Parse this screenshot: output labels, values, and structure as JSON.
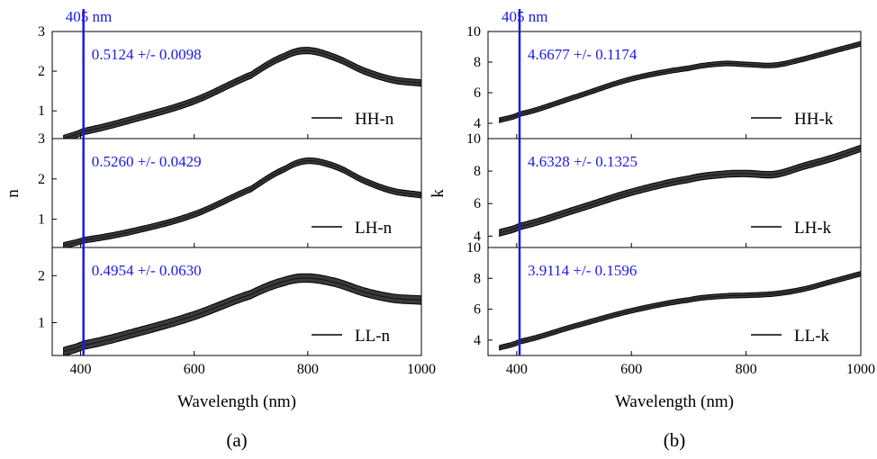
{
  "figure": {
    "panels": [
      {
        "id": "a",
        "caption": "(a)",
        "xlabel": "Wavelength (nm)",
        "ylabel": "n",
        "marker_label": "405 nm",
        "x_ticks": [
          "400",
          "600",
          "800",
          "1000"
        ]
      },
      {
        "id": "b",
        "caption": "(b)",
        "xlabel": "Wavelength (nm)",
        "ylabel": "k",
        "marker_label": "405 nm",
        "x_ticks": [
          "400",
          "600",
          "800",
          "1000"
        ]
      }
    ]
  },
  "chart_data": [
    {
      "type": "line",
      "panel": "a",
      "subplot": 1,
      "series": [
        {
          "name": "HH-n",
          "x": [
            370,
            405,
            500,
            600,
            700,
            760,
            800,
            850,
            900,
            950,
            1000
          ],
          "y": [
            0.3,
            0.48,
            0.82,
            1.25,
            1.9,
            2.38,
            2.52,
            2.33,
            2.0,
            1.78,
            1.7
          ]
        }
      ],
      "band_halfwidth": 0.08,
      "annotation": "0.5124 +/- 0.0098",
      "marker_x": 405,
      "xlim": [
        350,
        1000
      ],
      "ylim": [
        0.3,
        3
      ],
      "y_ticks": [
        "1",
        "2",
        "3"
      ],
      "grid": false,
      "legend_position": "lower-right"
    },
    {
      "type": "line",
      "panel": "a",
      "subplot": 2,
      "series": [
        {
          "name": "LH-n",
          "x": [
            370,
            405,
            500,
            600,
            700,
            760,
            800,
            850,
            900,
            950,
            1000
          ],
          "y": [
            0.35,
            0.48,
            0.73,
            1.12,
            1.75,
            2.25,
            2.45,
            2.3,
            1.95,
            1.7,
            1.6
          ]
        }
      ],
      "band_halfwidth": 0.07,
      "annotation": "0.5260 +/- 0.0429",
      "marker_x": 405,
      "xlim": [
        350,
        1000
      ],
      "ylim": [
        0.3,
        3
      ],
      "y_ticks": [
        "1",
        "2",
        "3"
      ],
      "grid": false,
      "legend_position": "lower-right"
    },
    {
      "type": "line",
      "panel": "a",
      "subplot": 3,
      "series": [
        {
          "name": "LL-n",
          "x": [
            370,
            405,
            500,
            600,
            700,
            760,
            800,
            850,
            900,
            950,
            1000
          ],
          "y": [
            0.38,
            0.52,
            0.8,
            1.15,
            1.6,
            1.88,
            1.95,
            1.85,
            1.65,
            1.52,
            1.48
          ]
        }
      ],
      "band_halfwidth": 0.09,
      "annotation": "0.4954 +/- 0.0630",
      "marker_x": 405,
      "xlim": [
        350,
        1000
      ],
      "ylim": [
        0.3,
        2.6
      ],
      "y_ticks": [
        "1",
        "2"
      ],
      "grid": false,
      "legend_position": "lower-right"
    },
    {
      "type": "line",
      "panel": "b",
      "subplot": 1,
      "series": [
        {
          "name": "HH-k",
          "x": [
            370,
            405,
            500,
            600,
            700,
            760,
            800,
            850,
            900,
            950,
            1000
          ],
          "y": [
            4.2,
            4.6,
            5.7,
            6.9,
            7.6,
            7.9,
            7.85,
            7.8,
            8.2,
            8.7,
            9.2
          ]
        }
      ],
      "band_halfwidth": 0.15,
      "annotation": "4.6677 +/- 0.1174",
      "marker_x": 405,
      "xlim": [
        350,
        1000
      ],
      "ylim": [
        3,
        10
      ],
      "y_ticks": [
        "4",
        "6",
        "8",
        "10"
      ],
      "grid": false,
      "legend_position": "lower-right"
    },
    {
      "type": "line",
      "panel": "b",
      "subplot": 2,
      "series": [
        {
          "name": "LH-k",
          "x": [
            370,
            405,
            500,
            600,
            700,
            760,
            800,
            850,
            900,
            950,
            1000
          ],
          "y": [
            4.2,
            4.6,
            5.6,
            6.7,
            7.5,
            7.8,
            7.85,
            7.8,
            8.3,
            8.8,
            9.4
          ]
        }
      ],
      "band_halfwidth": 0.2,
      "annotation": "4.6328 +/- 0.1325",
      "marker_x": 405,
      "xlim": [
        350,
        1000
      ],
      "ylim": [
        3.3,
        10
      ],
      "y_ticks": [
        "4",
        "6",
        "8",
        "10"
      ],
      "grid": false,
      "legend_position": "lower-right"
    },
    {
      "type": "line",
      "panel": "b",
      "subplot": 3,
      "series": [
        {
          "name": "LL-k",
          "x": [
            370,
            405,
            500,
            600,
            700,
            760,
            800,
            850,
            900,
            950,
            1000
          ],
          "y": [
            3.5,
            3.9,
            4.9,
            5.9,
            6.6,
            6.85,
            6.9,
            7.0,
            7.3,
            7.8,
            8.3
          ]
        }
      ],
      "band_halfwidth": 0.15,
      "annotation": "3.9114 +/- 0.1596",
      "marker_x": 405,
      "xlim": [
        350,
        1000
      ],
      "ylim": [
        3,
        10
      ],
      "y_ticks": [
        "4",
        "6",
        "8",
        "10"
      ],
      "grid": false,
      "legend_position": "lower-right"
    }
  ],
  "colors": {
    "marker_line": "#1a1ae6",
    "annotation_text": "#1a1ae6",
    "band_fill": "#3a3a3a",
    "band_edge": "#000000"
  }
}
